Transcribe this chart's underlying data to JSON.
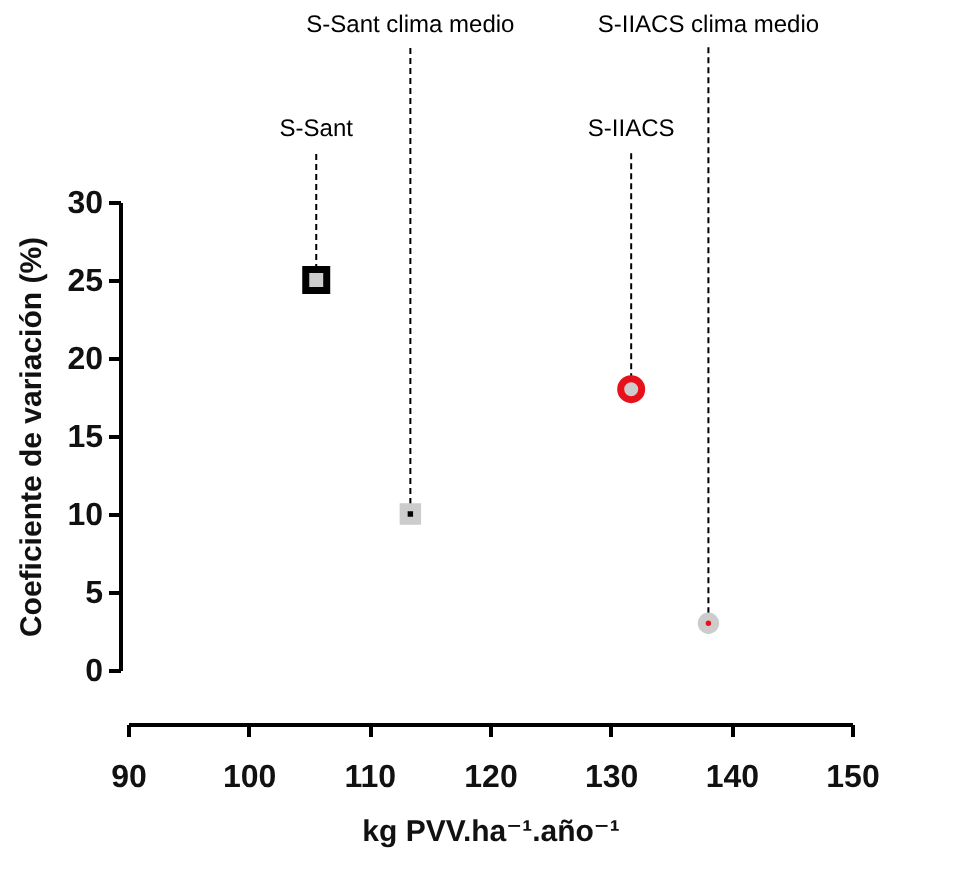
{
  "chart_data": {
    "type": "scatter",
    "xlabel": "kg PVV.ha⁻¹.año⁻¹",
    "ylabel": "Coeficiente de variación (%)",
    "xlim": [
      90,
      150
    ],
    "xticks": [
      90,
      100,
      110,
      120,
      130,
      140,
      150
    ],
    "ylim": [
      0,
      30
    ],
    "yticks": [
      0,
      5,
      10,
      15,
      20,
      25,
      30
    ],
    "grid": false,
    "series": [
      {
        "name": "S-Sant",
        "color": "#000000",
        "marker": "square",
        "x": [
          105.6
        ],
        "values": [
          25
        ]
      },
      {
        "name": "S-Sant clima medio",
        "color": "#000000",
        "marker": "square",
        "x": [
          113.4
        ],
        "values": [
          10
        ]
      },
      {
        "name": "S-IIACS",
        "color": "#e8101a",
        "marker": "circle",
        "x": [
          131.7
        ],
        "values": [
          18
        ]
      },
      {
        "name": "S-IIACS clima medio",
        "color": "#e8101a",
        "marker": "circle",
        "x": [
          138.1
        ],
        "values": [
          3
        ]
      }
    ]
  }
}
